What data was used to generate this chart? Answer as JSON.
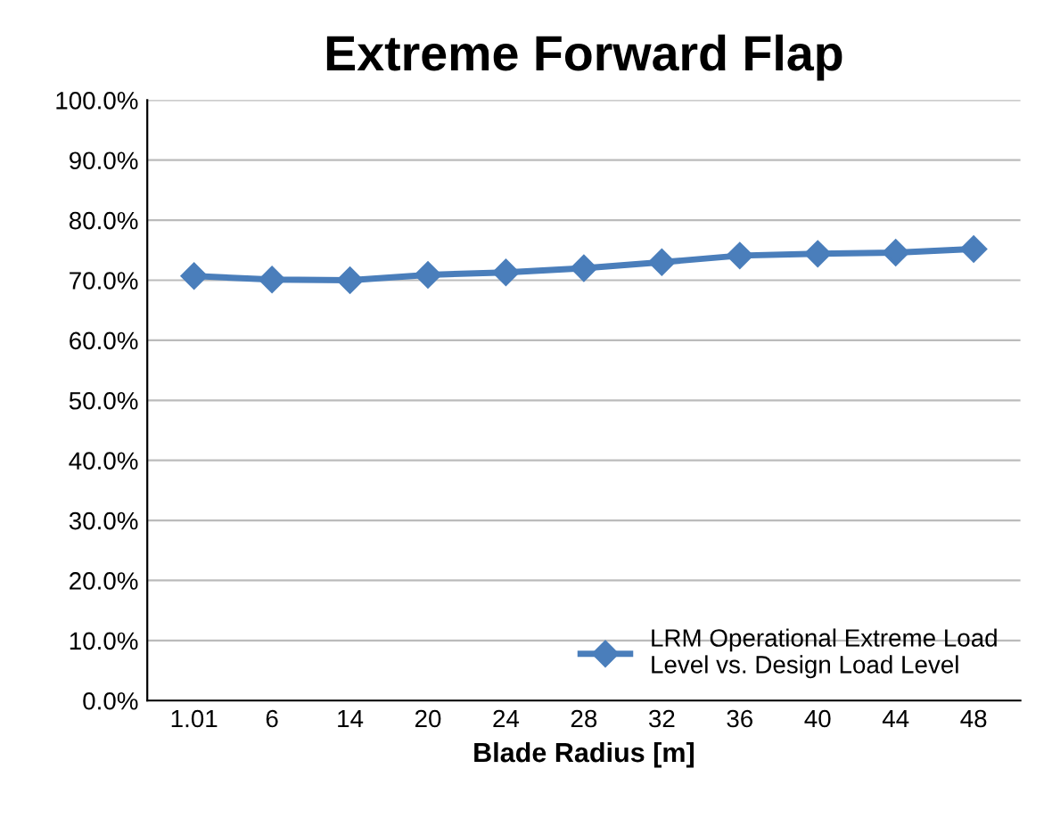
{
  "chart_data": {
    "type": "line",
    "title": "Extreme Forward Flap",
    "xlabel": "Blade Radius [m]",
    "categories": [
      "1.01",
      "6",
      "14",
      "20",
      "24",
      "28",
      "32",
      "36",
      "40",
      "44",
      "48"
    ],
    "series": [
      {
        "name": "LRM Operational Extreme Load\nLevel vs. Design Load Level",
        "color": "#4a7ebb",
        "values": [
          70.7,
          70.1,
          70.0,
          70.9,
          71.3,
          72.0,
          73.0,
          74.1,
          74.4,
          74.6,
          75.2
        ]
      }
    ],
    "ylim": [
      0,
      100
    ],
    "yticks": [
      {
        "value": 0,
        "label": "0.0%"
      },
      {
        "value": 10,
        "label": "10.0%"
      },
      {
        "value": 20,
        "label": "20.0%"
      },
      {
        "value": 30,
        "label": "30.0%"
      },
      {
        "value": 40,
        "label": "40.0%"
      },
      {
        "value": 50,
        "label": "50.0%"
      },
      {
        "value": 60,
        "label": "60.0%"
      },
      {
        "value": 70,
        "label": "70.0%"
      },
      {
        "value": 80,
        "label": "80.0%"
      },
      {
        "value": 90,
        "label": "90.0%"
      },
      {
        "value": 100,
        "label": "100.0%"
      }
    ],
    "grid": "y",
    "legend": "bottom right",
    "marker": "diamond",
    "line_style": "solid"
  }
}
